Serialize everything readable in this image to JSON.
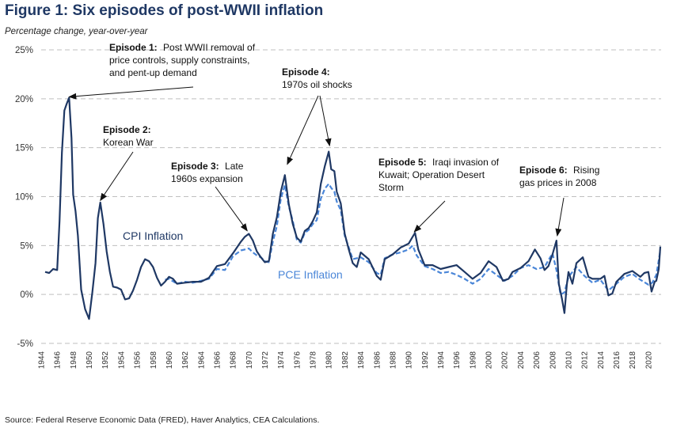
{
  "chart_data": {
    "type": "line",
    "title": "Figure 1: Six episodes of post-WWII inflation",
    "subtitle": "Percentage change, year-over-year",
    "source": "Source: Federal Reserve Economic Data (FRED), Haver Analytics, CEA Calculations.",
    "ylim": [
      -5,
      25
    ],
    "xlim": [
      1944,
      2021.6
    ],
    "yticks": [
      {
        "value": 25,
        "label": "25%"
      },
      {
        "value": 20,
        "label": "20%"
      },
      {
        "value": 15,
        "label": "15%"
      },
      {
        "value": 10,
        "label": "10%"
      },
      {
        "value": 5,
        "label": "5%"
      },
      {
        "value": 0,
        "label": "0%"
      },
      {
        "value": -5,
        "label": "-5%"
      }
    ],
    "xticks": [
      "1944",
      "1946",
      "1948",
      "1950",
      "1952",
      "1954",
      "1956",
      "1958",
      "1960",
      "1962",
      "1964",
      "1966",
      "1968",
      "1970",
      "1972",
      "1974",
      "1976",
      "1978",
      "1980",
      "1982",
      "1984",
      "1986",
      "1988",
      "1990",
      "1992",
      "1994",
      "1996",
      "1998",
      "2000",
      "2002",
      "2004",
      "2006",
      "2008",
      "2010",
      "2012",
      "2014",
      "2016",
      "2018",
      "2020"
    ],
    "grid": true,
    "colors": {
      "cpi": "#1f3864",
      "pce": "#4a86d8",
      "title": "#1f3864",
      "grid": "#bfbfbf"
    },
    "series": [
      {
        "name": "CPI Inflation",
        "style": "solid",
        "x": [
          1944.5,
          1945,
          1945.5,
          1946,
          1946.3,
          1946.6,
          1946.9,
          1947.2,
          1947.5,
          1947.8,
          1948,
          1948.3,
          1948.6,
          1949,
          1949.5,
          1950,
          1950.4,
          1950.8,
          1951.1,
          1951.4,
          1951.8,
          1952.2,
          1952.6,
          1953,
          1953.5,
          1954,
          1954.5,
          1955,
          1955.5,
          1956,
          1956.5,
          1957,
          1957.5,
          1958,
          1958.5,
          1959,
          1959.5,
          1960,
          1960.5,
          1961,
          1962,
          1963,
          1964,
          1965,
          1966,
          1967,
          1968,
          1969,
          1969.5,
          1970,
          1970.5,
          1971,
          1971.5,
          1972,
          1972.5,
          1973,
          1973.5,
          1974,
          1974.5,
          1975,
          1975.5,
          1976,
          1976.5,
          1977,
          1977.5,
          1978,
          1978.5,
          1979,
          1979.5,
          1980,
          1980.3,
          1980.7,
          1981,
          1981.5,
          1982,
          1982.5,
          1983,
          1983.5,
          1984,
          1985,
          1986,
          1986.5,
          1987,
          1988,
          1989,
          1990,
          1990.5,
          1990.8,
          1991.2,
          1992,
          1993,
          1994,
          1995,
          1996,
          1997,
          1998,
          1999,
          2000,
          2001,
          2001.8,
          2002.5,
          2003,
          2004,
          2005,
          2005.8,
          2006.5,
          2007,
          2007.5,
          2008,
          2008.5,
          2008.8,
          2009.2,
          2009.5,
          2009.8,
          2010,
          2010.5,
          2011,
          2011.8,
          2012.5,
          2013,
          2014,
          2014.5,
          2015,
          2015.5,
          2016,
          2017,
          2018,
          2019,
          2019.5,
          2020,
          2020.4,
          2020.8,
          2021,
          2021.3,
          2021.5
        ],
        "values": [
          2.3,
          2.2,
          2.6,
          2.5,
          7.5,
          14.5,
          18.8,
          19.5,
          20.1,
          16.0,
          10.2,
          8.5,
          6.0,
          0.5,
          -1.5,
          -2.5,
          0.2,
          3.2,
          7.8,
          9.4,
          7.2,
          4.4,
          2.3,
          0.8,
          0.7,
          0.5,
          -0.5,
          -0.4,
          0.4,
          1.5,
          2.8,
          3.6,
          3.4,
          2.8,
          1.7,
          0.9,
          1.3,
          1.8,
          1.6,
          1.1,
          1.2,
          1.3,
          1.3,
          1.7,
          2.9,
          3.1,
          4.2,
          5.4,
          5.9,
          6.2,
          5.5,
          4.4,
          3.8,
          3.3,
          3.4,
          6.2,
          7.9,
          10.5,
          12.2,
          9.2,
          7.2,
          5.8,
          5.4,
          6.5,
          6.8,
          7.5,
          8.4,
          11.3,
          13.1,
          14.6,
          12.8,
          12.6,
          10.5,
          9.3,
          6.2,
          4.6,
          3.2,
          2.8,
          4.3,
          3.6,
          1.9,
          1.5,
          3.6,
          4.1,
          4.8,
          5.2,
          5.9,
          6.3,
          4.6,
          3.0,
          3.0,
          2.6,
          2.8,
          3.0,
          2.3,
          1.6,
          2.2,
          3.4,
          2.8,
          1.4,
          1.6,
          2.3,
          2.7,
          3.4,
          4.6,
          3.7,
          2.5,
          2.9,
          4.1,
          5.5,
          1.1,
          -0.5,
          -1.9,
          1.0,
          2.3,
          1.1,
          3.2,
          3.8,
          1.8,
          1.6,
          1.6,
          1.9,
          -0.1,
          0.1,
          1.3,
          2.1,
          2.4,
          1.8,
          2.2,
          2.3,
          0.3,
          1.3,
          1.4,
          2.6,
          4.9
        ]
      },
      {
        "name": "PCE Inflation",
        "style": "dashed",
        "x": [
          1959.5,
          1960,
          1961,
          1962,
          1963,
          1964,
          1965,
          1966,
          1967,
          1968,
          1969,
          1969.5,
          1970,
          1970.5,
          1971,
          1971.5,
          1972,
          1972.5,
          1973,
          1973.5,
          1974,
          1974.5,
          1975,
          1975.5,
          1976,
          1976.5,
          1977,
          1977.5,
          1978,
          1978.5,
          1979,
          1979.5,
          1980,
          1980.3,
          1980.7,
          1981,
          1981.5,
          1982,
          1982.5,
          1983,
          1984,
          1985,
          1986,
          1986.5,
          1987,
          1988,
          1989,
          1990,
          1990.5,
          1991,
          1992,
          1993,
          1994,
          1995,
          1996,
          1997,
          1998,
          1999,
          2000,
          2001,
          2002,
          2003,
          2004,
          2005,
          2006,
          2007,
          2007.5,
          2008,
          2008.5,
          2009,
          2009.5,
          2010,
          2011,
          2012,
          2013,
          2014,
          2015,
          2016,
          2017,
          2018,
          2019,
          2020,
          2020.5,
          2021,
          2021.3,
          2021.5
        ],
        "values": [
          1.5,
          1.6,
          1.1,
          1.3,
          1.2,
          1.4,
          1.6,
          2.6,
          2.5,
          3.9,
          4.5,
          4.6,
          4.7,
          4.3,
          4.0,
          3.8,
          3.4,
          3.3,
          5.4,
          7.0,
          9.8,
          11.2,
          9.0,
          7.5,
          5.6,
          5.3,
          6.3,
          6.6,
          7.2,
          7.6,
          9.8,
          10.8,
          11.3,
          10.9,
          10.5,
          9.5,
          8.6,
          6.0,
          4.8,
          3.6,
          3.8,
          3.3,
          2.2,
          2.0,
          3.7,
          4.1,
          4.3,
          4.6,
          5.0,
          4.0,
          2.9,
          2.6,
          2.2,
          2.3,
          2.0,
          1.6,
          1.1,
          1.6,
          2.6,
          2.0,
          1.4,
          1.9,
          2.7,
          3.0,
          2.6,
          2.8,
          3.5,
          4.2,
          2.5,
          0.0,
          0.2,
          1.8,
          2.8,
          1.9,
          1.2,
          1.5,
          0.4,
          1.1,
          1.8,
          2.1,
          1.5,
          1.0,
          1.2,
          2.0,
          3.5,
          4.5
        ]
      }
    ],
    "annotations": [
      {
        "id": "ep1",
        "title": "Episode 1:",
        "lines": [
          "Post WWII removal of",
          "price controls, supply constraints,",
          "and pent-up demand"
        ],
        "target": {
          "x": 1947.5,
          "y": 20.2
        }
      },
      {
        "id": "ep2",
        "title": "Episode 2:",
        "lines": [
          "Korean War"
        ],
        "target": {
          "x": 1951.4,
          "y": 9.6
        }
      },
      {
        "id": "ep3",
        "title": "Episode 3:",
        "lines": [
          "Late",
          "1960s expansion"
        ],
        "target": {
          "x": 1969.8,
          "y": 6.5
        }
      },
      {
        "id": "ep4",
        "title": "Episode 4:",
        "lines": [
          "1970s oil shocks"
        ],
        "targets": [
          {
            "x": 1974.8,
            "y": 13.3
          },
          {
            "x": 1980.1,
            "y": 15.2
          }
        ]
      },
      {
        "id": "ep5",
        "title": "Episode 5:",
        "lines": [
          "Iraqi invasion of",
          "Kuwait; Operation Desert",
          "Storm"
        ],
        "target": {
          "x": 1990.7,
          "y": 6.4
        }
      },
      {
        "id": "ep6",
        "title": "Episode 6:",
        "lines": [
          "Rising",
          "gas prices in 2008"
        ],
        "target": {
          "x": 2008.6,
          "y": 6.0
        }
      }
    ]
  }
}
